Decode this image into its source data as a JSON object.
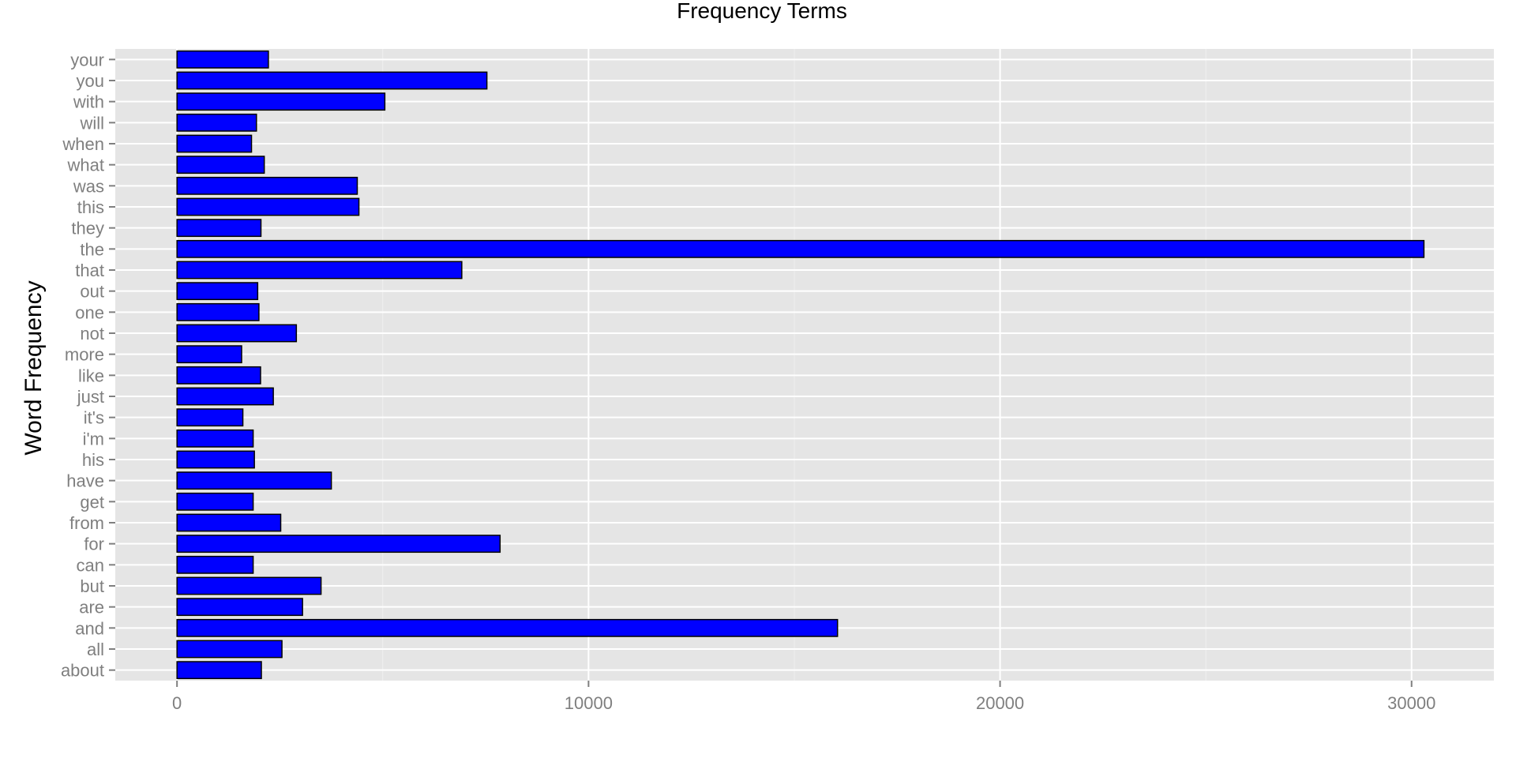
{
  "chart_data": {
    "type": "bar",
    "orientation": "horizontal",
    "title": "Frequency Terms",
    "xlabel": "",
    "ylabel": "Word Frequency",
    "xlim": [
      -1500,
      32000
    ],
    "x_ticks": [
      0,
      10000,
      20000,
      30000
    ],
    "x_tick_labels": [
      "0",
      "10000",
      "20000",
      "30000"
    ],
    "grid": true,
    "legend": "none",
    "colors": {
      "bar_fill": "#0000ff",
      "bar_stroke": "#000000",
      "panel": "#e5e5e5",
      "grid": "#ffffff",
      "tick_text": "#7f7f7f"
    },
    "categories": [
      "about",
      "all",
      "and",
      "are",
      "but",
      "can",
      "for",
      "from",
      "get",
      "have",
      "his",
      "i'm",
      "it's",
      "just",
      "like",
      "more",
      "not",
      "one",
      "out",
      "that",
      "the",
      "they",
      "this",
      "was",
      "what",
      "when",
      "will",
      "with",
      "you",
      "your"
    ],
    "values": [
      2050,
      2550,
      16050,
      3050,
      3500,
      1850,
      7850,
      2520,
      1850,
      3750,
      1880,
      1850,
      1600,
      2340,
      2030,
      1570,
      2900,
      1990,
      1960,
      6920,
      30300,
      2040,
      4420,
      4380,
      2120,
      1810,
      1930,
      5050,
      7530,
      2220
    ]
  }
}
